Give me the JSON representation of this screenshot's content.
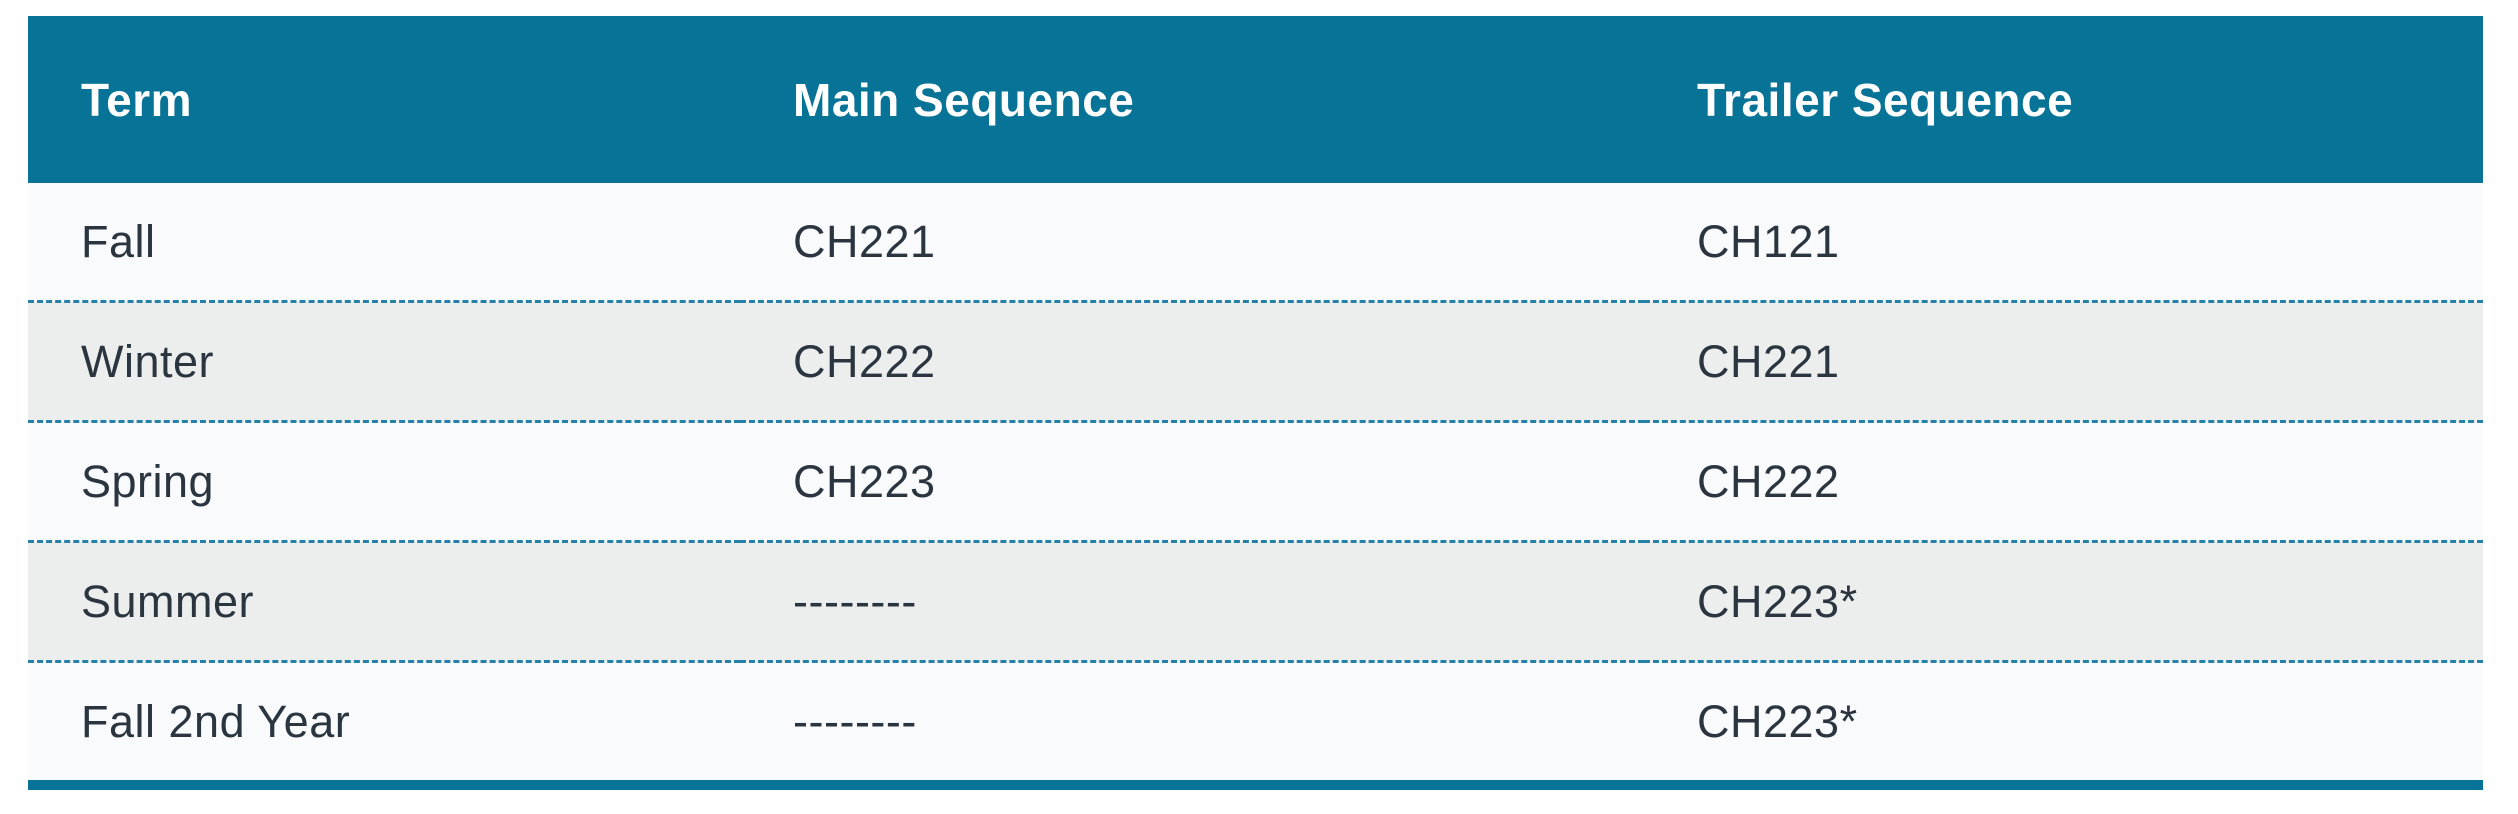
{
  "table": {
    "columns": [
      {
        "label": "Term"
      },
      {
        "label": "Main Sequence"
      },
      {
        "label": "Trailer Sequence"
      }
    ],
    "rows": [
      {
        "term": "Fall",
        "main_sequence": "CH221",
        "trailer_sequence": "CH121"
      },
      {
        "term": "Winter",
        "main_sequence": "CH222",
        "trailer_sequence": "CH221"
      },
      {
        "term": "Spring",
        "main_sequence": "CH223",
        "trailer_sequence": "CH222"
      },
      {
        "term": "Summer",
        "main_sequence": "--------",
        "trailer_sequence": "CH223*"
      },
      {
        "term": "Fall 2nd Year",
        "main_sequence": "--------",
        "trailer_sequence": "CH223*"
      }
    ],
    "colors": {
      "header_bg": "#077396",
      "header_text": "#ffffff",
      "divider": "#2581a8",
      "row_light": "#f9fafb",
      "row_alt": "#eceeee",
      "body_text": "#2b3540",
      "bottom_bar": "#077396"
    }
  }
}
